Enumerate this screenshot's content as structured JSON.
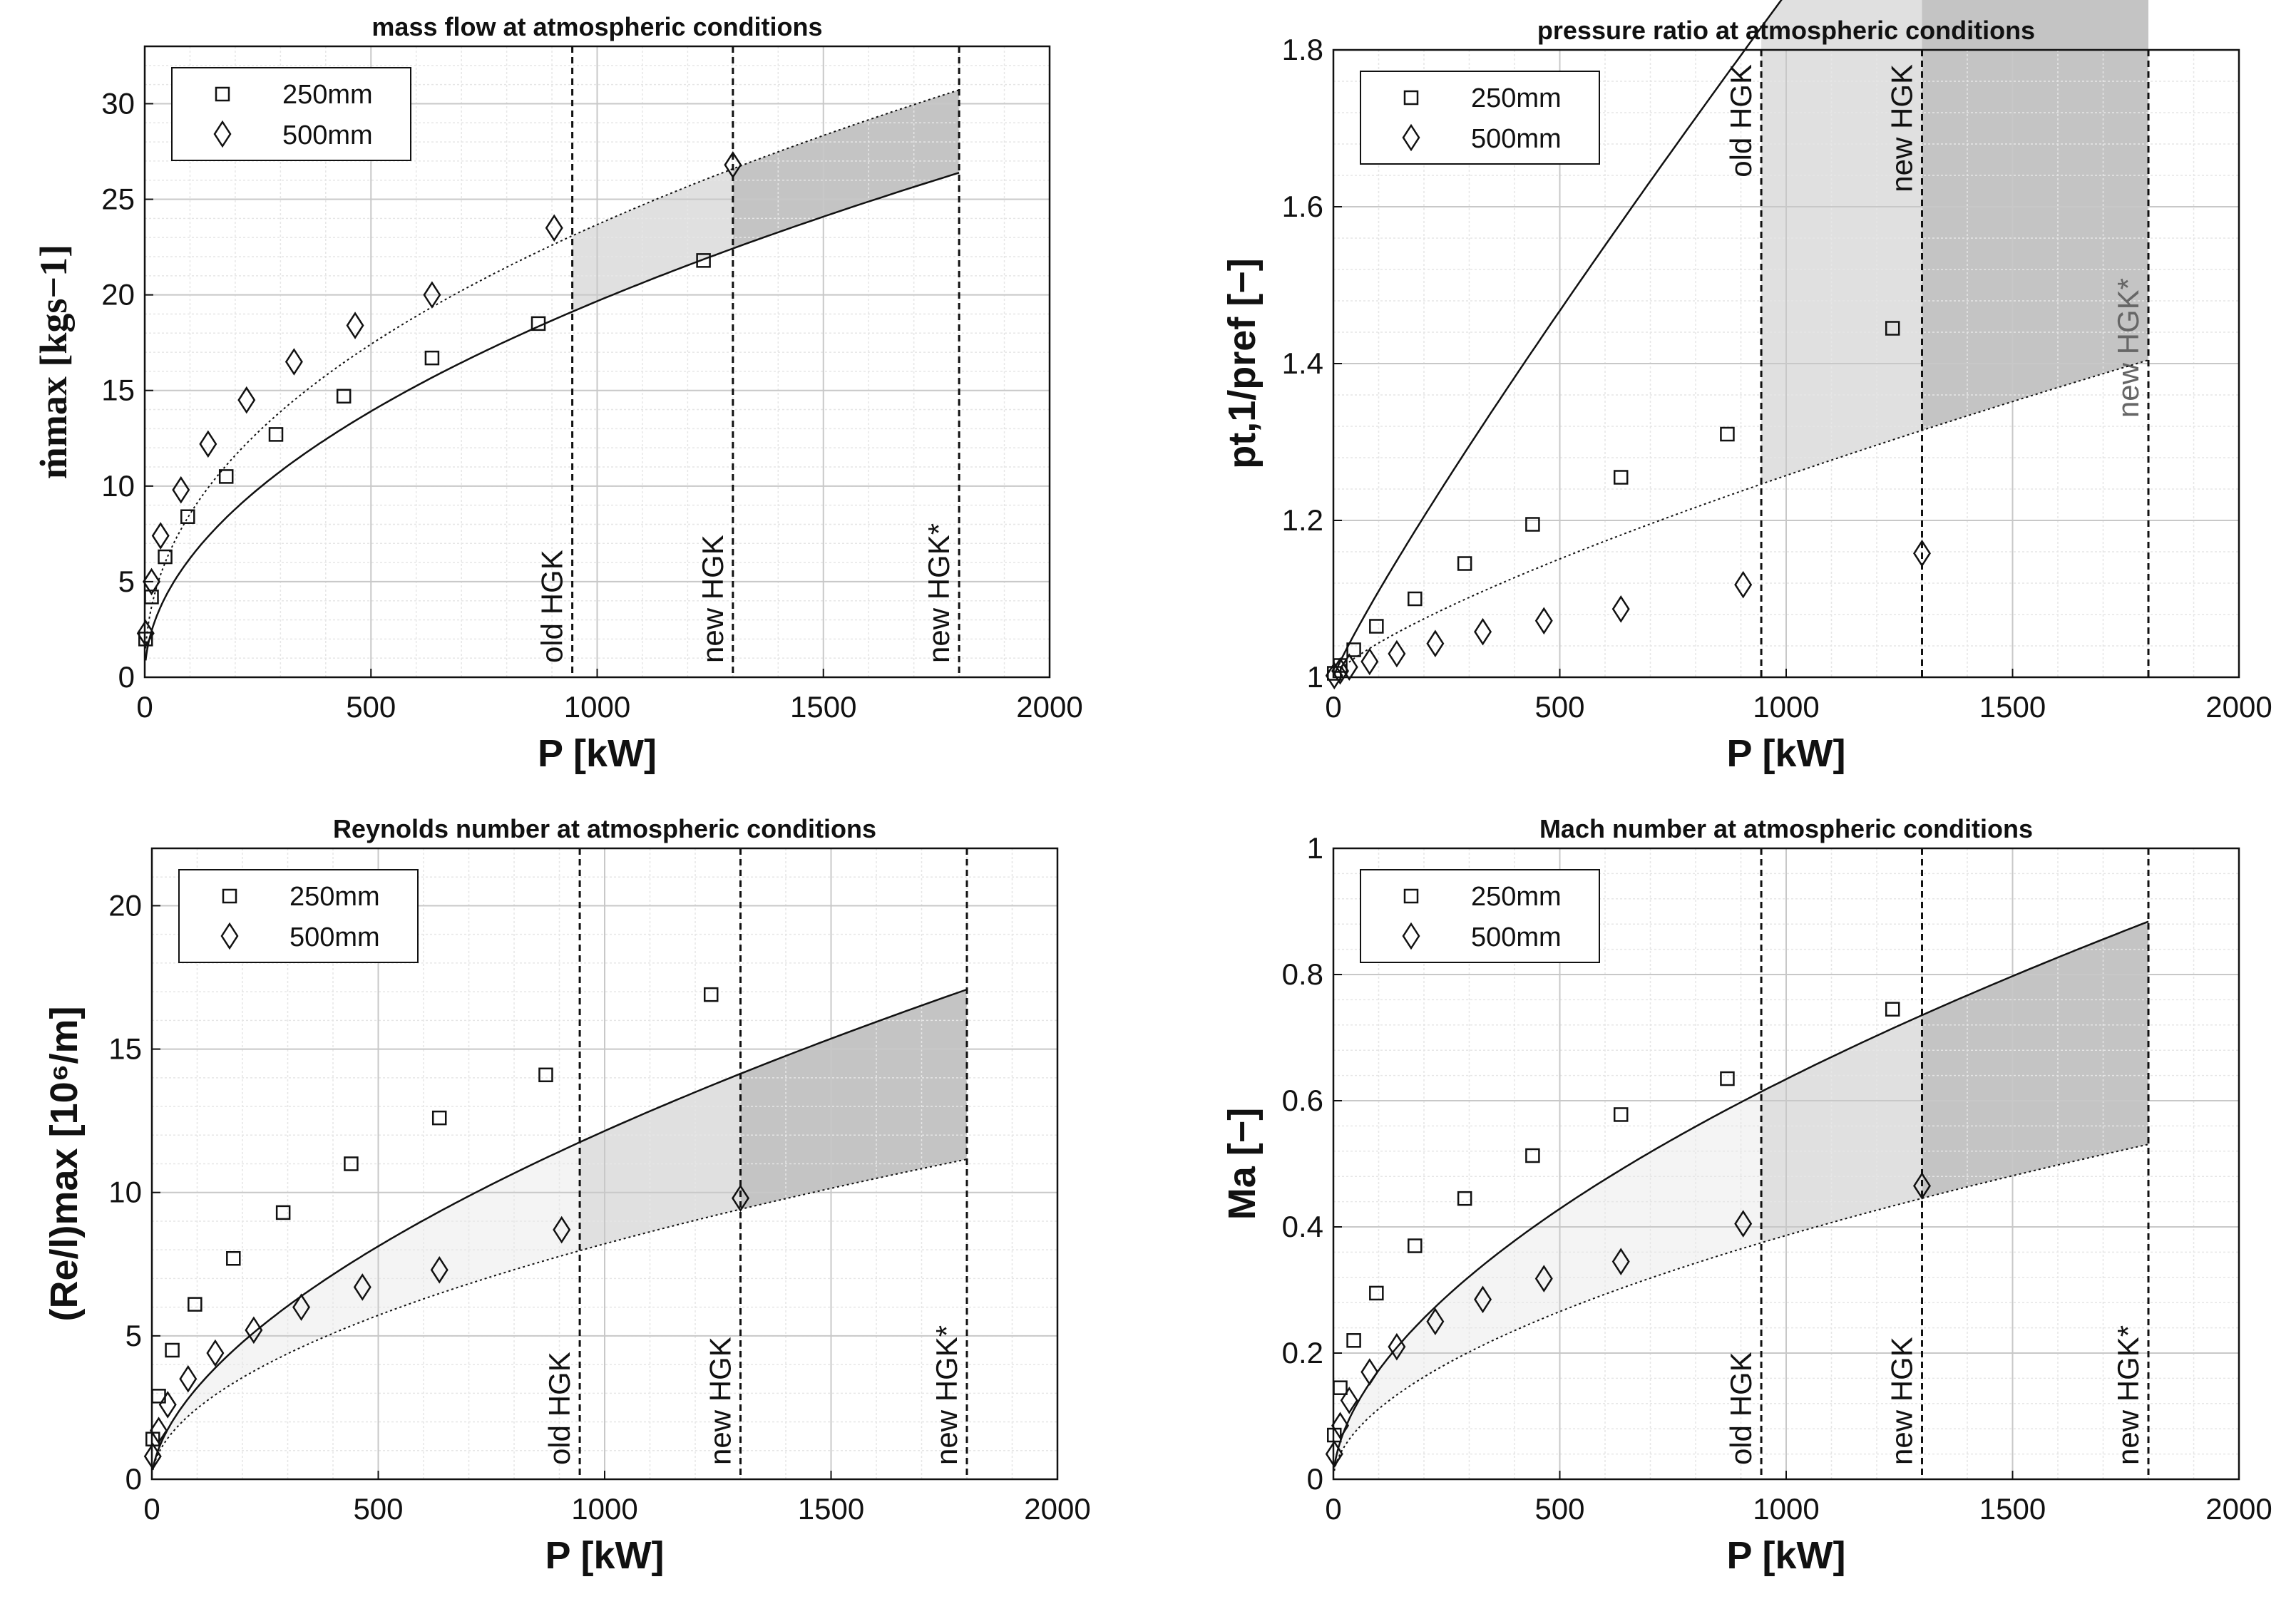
{
  "colors": {
    "fill_light": "#f4f4f4",
    "fill_mid": "#e0e0e0",
    "fill_dark": "#c4c4c4",
    "grid_major": "#c8c8c8",
    "grid_minor": "#e6e6e6",
    "line": "#111111"
  },
  "legend": {
    "series_a": "250mm",
    "series_b": "500mm"
  },
  "chart_data": [
    {
      "id": "mass",
      "type": "line",
      "title": "mass flow at atmospheric conditions",
      "xlabel": "P [kW]",
      "ylabel": "ṁmax [kgs−1]",
      "xlim": [
        0,
        2000
      ],
      "ylim": [
        0,
        33
      ],
      "xticks": [
        0,
        500,
        1000,
        1500,
        2000
      ],
      "yticks": [
        0,
        5,
        10,
        15,
        20,
        25,
        30
      ],
      "xtick_labels": [
        "0",
        "500",
        "1000",
        "1500",
        "2000"
      ],
      "ytick_labels": [
        "0",
        "5",
        "10",
        "15",
        "20",
        "25",
        "30"
      ],
      "grid": true,
      "legend_position": "top-left",
      "vlines": [
        {
          "x": 945,
          "label": "old HGK"
        },
        {
          "x": 1300,
          "label": "new HGK"
        },
        {
          "x": 1800,
          "label": "new HGK*"
        }
      ],
      "shading": [
        {
          "from": 945,
          "to": 1300,
          "shade": "mid"
        },
        {
          "from": 1300,
          "to": 1800,
          "shade": "dark"
        }
      ],
      "label_side": "bottom",
      "series": [
        {
          "name": "250mm",
          "marker": "square",
          "dash": "solid",
          "x": [
            2,
            15,
            45,
            95,
            180,
            290,
            440,
            635,
            870,
            1235
          ],
          "y": [
            2.0,
            4.2,
            6.3,
            8.4,
            10.5,
            12.7,
            14.7,
            16.7,
            18.5,
            21.8
          ],
          "curve": {
            "a": 0.622,
            "b": 0.5
          }
        },
        {
          "name": "500mm",
          "marker": "diamond",
          "dash": "dotted",
          "x": [
            2,
            15,
            35,
            80,
            140,
            225,
            330,
            465,
            635,
            905,
            1300
          ],
          "y": [
            2.3,
            5.0,
            7.4,
            9.8,
            12.2,
            14.5,
            16.5,
            18.4,
            20.0,
            23.5,
            26.8
          ],
          "curve": {
            "a": 1.11,
            "b": 0.443
          }
        }
      ]
    },
    {
      "id": "pressure",
      "type": "line",
      "title": "pressure ratio at atmospheric conditions",
      "xlabel": "P [kW]",
      "ylabel": "pt,1/pref [−]",
      "xlim": [
        0,
        2000
      ],
      "ylim": [
        1,
        1.8
      ],
      "xticks": [
        0,
        500,
        1000,
        1500,
        2000
      ],
      "yticks": [
        1,
        1.2,
        1.4,
        1.6,
        1.8
      ],
      "xtick_labels": [
        "0",
        "500",
        "1000",
        "1500",
        "2000"
      ],
      "ytick_labels": [
        "1",
        "1.2",
        "1.4",
        "1.6",
        "1.8"
      ],
      "grid": true,
      "legend_position": "top-left",
      "vlines": [
        {
          "x": 945,
          "label": "old HGK"
        },
        {
          "x": 1300,
          "label": "new HGK"
        },
        {
          "x": 1800,
          "label": "new HGK*"
        }
      ],
      "shading": [
        {
          "from": 945,
          "to": 1300,
          "shade": "mid"
        },
        {
          "from": 1300,
          "to": 1800,
          "shade": "dark"
        }
      ],
      "label_side": "top",
      "series": [
        {
          "name": "250mm",
          "marker": "square",
          "dash": "solid",
          "x": [
            2,
            15,
            45,
            95,
            180,
            290,
            440,
            635,
            870,
            1235
          ],
          "y": [
            1.005,
            1.015,
            1.035,
            1.065,
            1.1,
            1.145,
            1.195,
            1.255,
            1.31,
            1.445
          ],
          "curve": {
            "base": 1,
            "a": 0.00174,
            "b": 0.9
          }
        },
        {
          "name": "500mm",
          "marker": "diamond",
          "dash": "dotted",
          "x": [
            2,
            15,
            35,
            80,
            140,
            225,
            330,
            465,
            635,
            905,
            1300
          ],
          "y": [
            1.002,
            1.008,
            1.013,
            1.02,
            1.03,
            1.043,
            1.058,
            1.072,
            1.087,
            1.118,
            1.158
          ],
          "curve": {
            "base": 1,
            "a": 0.00126,
            "b": 0.77
          }
        }
      ]
    },
    {
      "id": "reynolds",
      "type": "line",
      "title": "Reynolds number at atmospheric conditions",
      "xlabel": "P [kW]",
      "ylabel": "(Re/l)max [10⁶/m]",
      "xlim": [
        0,
        2000
      ],
      "ylim": [
        0,
        22
      ],
      "xticks": [
        0,
        500,
        1000,
        1500,
        2000
      ],
      "yticks": [
        0,
        5,
        10,
        15,
        20
      ],
      "xtick_labels": [
        "0",
        "500",
        "1000",
        "1500",
        "2000"
      ],
      "ytick_labels": [
        "0",
        "5",
        "10",
        "15",
        "20"
      ],
      "grid": true,
      "legend_position": "top-left",
      "vlines": [
        {
          "x": 945,
          "label": "old HGK"
        },
        {
          "x": 1300,
          "label": "new HGK"
        },
        {
          "x": 1800,
          "label": "new HGK*"
        }
      ],
      "shading": [
        {
          "from": 0,
          "to": 945,
          "shade": "light"
        },
        {
          "from": 945,
          "to": 1300,
          "shade": "mid"
        },
        {
          "from": 1300,
          "to": 1800,
          "shade": "dark"
        }
      ],
      "label_side": "bottom",
      "series": [
        {
          "name": "250mm",
          "marker": "square",
          "dash": "solid",
          "x": [
            2,
            15,
            45,
            95,
            180,
            290,
            440,
            635,
            870,
            1235
          ],
          "y": [
            1.4,
            2.9,
            4.5,
            6.1,
            7.7,
            9.3,
            11.0,
            12.6,
            14.1,
            16.9
          ],
          "curve": {
            "a": 0.221,
            "b": 0.58
          }
        },
        {
          "name": "500mm",
          "marker": "diamond",
          "dash": "dotted",
          "x": [
            2,
            15,
            35,
            80,
            140,
            225,
            330,
            465,
            635,
            905,
            1300
          ],
          "y": [
            0.8,
            1.7,
            2.6,
            3.5,
            4.4,
            5.2,
            6.0,
            6.7,
            7.3,
            8.7,
            9.8
          ],
          "curve": {
            "a": 0.223,
            "b": 0.522
          }
        }
      ]
    },
    {
      "id": "mach",
      "type": "line",
      "title": "Mach number at atmospheric conditions",
      "xlabel": "P [kW]",
      "ylabel": "Ma [−]",
      "xlim": [
        0,
        2000
      ],
      "ylim": [
        0,
        1
      ],
      "xticks": [
        0,
        500,
        1000,
        1500,
        2000
      ],
      "yticks": [
        0,
        0.2,
        0.4,
        0.6,
        0.8,
        1
      ],
      "xtick_labels": [
        "0",
        "500",
        "1000",
        "1500",
        "2000"
      ],
      "ytick_labels": [
        "0",
        "0.2",
        "0.4",
        "0.6",
        "0.8",
        "1"
      ],
      "grid": true,
      "legend_position": "top-left",
      "vlines": [
        {
          "x": 945,
          "label": "old HGK"
        },
        {
          "x": 1300,
          "label": "new HGK"
        },
        {
          "x": 1800,
          "label": "new HGK*"
        }
      ],
      "shading": [
        {
          "from": 0,
          "to": 945,
          "shade": "light"
        },
        {
          "from": 945,
          "to": 1300,
          "shade": "mid"
        },
        {
          "from": 1300,
          "to": 1800,
          "shade": "dark"
        }
      ],
      "label_side": "bottom",
      "series": [
        {
          "name": "250mm",
          "marker": "square",
          "dash": "solid",
          "x": [
            2,
            15,
            45,
            95,
            180,
            290,
            440,
            635,
            870,
            1235
          ],
          "y": [
            0.07,
            0.145,
            0.22,
            0.295,
            0.37,
            0.445,
            0.513,
            0.578,
            0.635,
            0.745
          ],
          "curve": {
            "a": 0.0128,
            "b": 0.565
          }
        },
        {
          "name": "500mm",
          "marker": "diamond",
          "dash": "dotted",
          "x": [
            2,
            15,
            35,
            80,
            140,
            225,
            330,
            465,
            635,
            905,
            1300
          ],
          "y": [
            0.04,
            0.085,
            0.125,
            0.17,
            0.21,
            0.25,
            0.285,
            0.318,
            0.345,
            0.405,
            0.465
          ],
          "curve": {
            "a": 0.00927,
            "b": 0.54
          }
        }
      ]
    }
  ]
}
